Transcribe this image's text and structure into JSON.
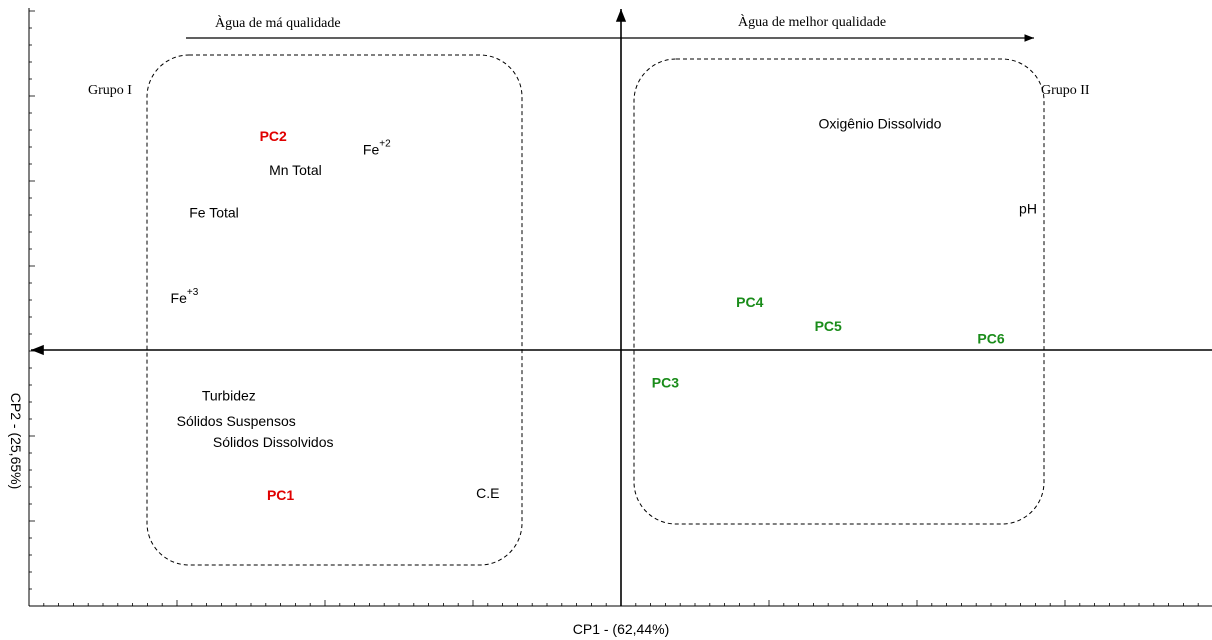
{
  "chart_data": {
    "type": "scatter",
    "title": "",
    "xlabel": "CP1 - (62,44%)",
    "ylabel": "CP2 - (25,65%)",
    "grid": false,
    "quality_arrows": {
      "bad": "Àgua de má qualidade",
      "good": "Àgua de melhor qualidade"
    },
    "groups": [
      {
        "label": "Grupo I"
      },
      {
        "label": "Grupo II"
      }
    ],
    "variables": [
      {
        "label": "Oxigênio Dissolvido",
        "x": 1.75,
        "y": 2.65
      },
      {
        "label": "Mn Total",
        "x": -2.2,
        "y": 2.1
      },
      {
        "label": "Fe Total",
        "x": -2.75,
        "y": 1.6
      },
      {
        "label": "pH",
        "x": 2.75,
        "y": 1.65
      },
      {
        "label": "Turbidez",
        "x": -2.65,
        "y": -0.55
      },
      {
        "label": "Sólidos Suspensos",
        "x": -2.6,
        "y": -0.85
      },
      {
        "label": "Sólidos Dissolvidos",
        "x": -2.35,
        "y": -1.1
      },
      {
        "label": "C.E",
        "x": -0.9,
        "y": -1.7
      }
    ],
    "ions": [
      {
        "base": "Fe",
        "sup": "+2",
        "x": -1.65,
        "y": 2.35
      },
      {
        "base": "Fe",
        "sup": "+3",
        "x": -2.95,
        "y": 0.6
      }
    ],
    "points": [
      {
        "label": "PC1",
        "x": -2.3,
        "y": -1.72,
        "color": "#e00000"
      },
      {
        "label": "PC2",
        "x": -2.35,
        "y": 2.5,
        "color": "#e00000"
      },
      {
        "label": "PC3",
        "x": 0.3,
        "y": -0.4,
        "color": "#1a8c1a"
      },
      {
        "label": "PC4",
        "x": 0.87,
        "y": 0.55,
        "color": "#1a8c1a"
      },
      {
        "label": "PC5",
        "x": 1.4,
        "y": 0.27,
        "color": "#1a8c1a"
      },
      {
        "label": "PC6",
        "x": 2.5,
        "y": 0.12,
        "color": "#1a8c1a"
      }
    ]
  }
}
